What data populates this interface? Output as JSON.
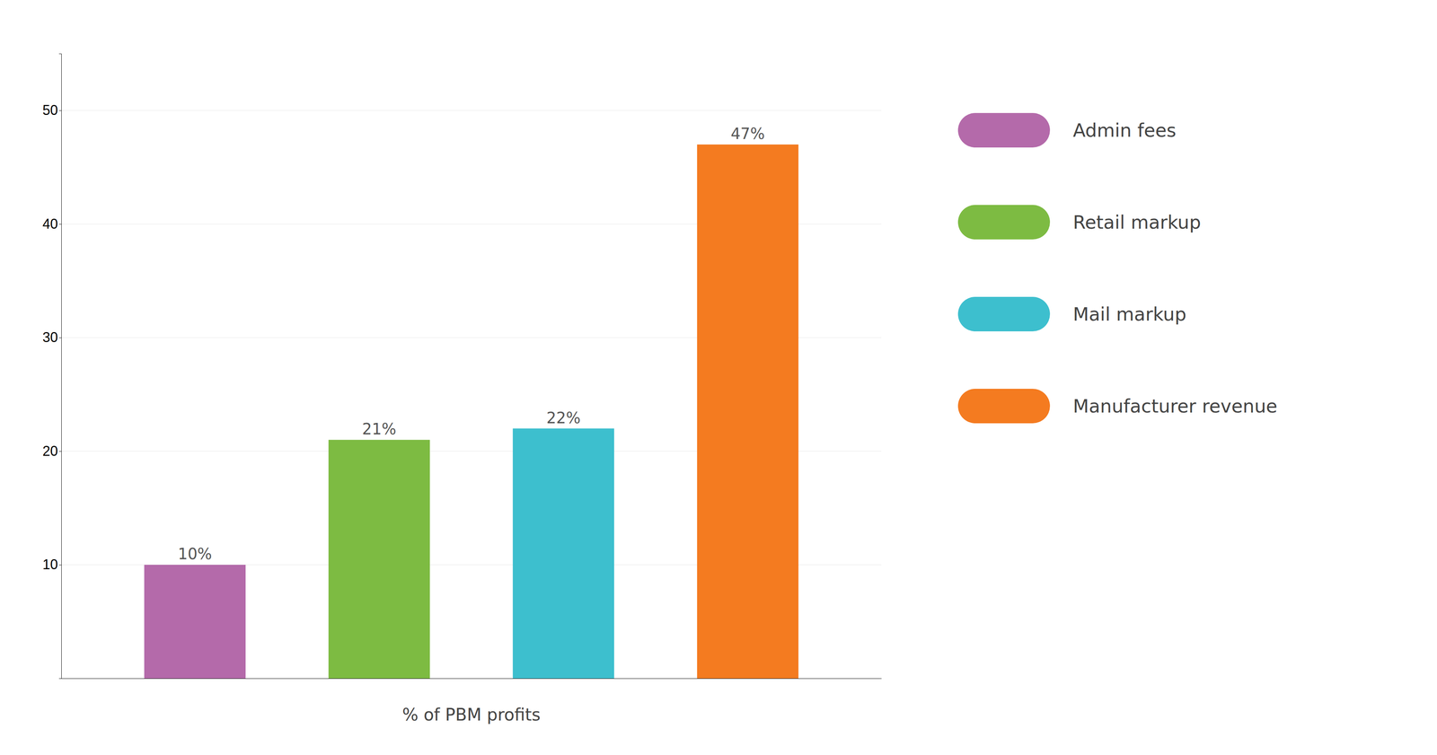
{
  "chart_data": {
    "type": "bar",
    "categories": [
      "Admin fees",
      "Retail markup",
      "Mail markup",
      "Manufacturer revenue"
    ],
    "values": [
      10,
      21,
      22,
      47
    ],
    "value_labels": [
      "10%",
      "21%",
      "22%",
      "47%"
    ],
    "colors": [
      "#b46aaa",
      "#7dbb42",
      "#3dbfce",
      "#f47b20"
    ],
    "xlabel": "% of PBM profits",
    "ylim": [
      0,
      55
    ],
    "yticks": [
      10,
      20,
      30,
      40,
      50
    ],
    "grid": true,
    "legend": "right",
    "data_labels": true,
    "tick_labels": "y"
  }
}
